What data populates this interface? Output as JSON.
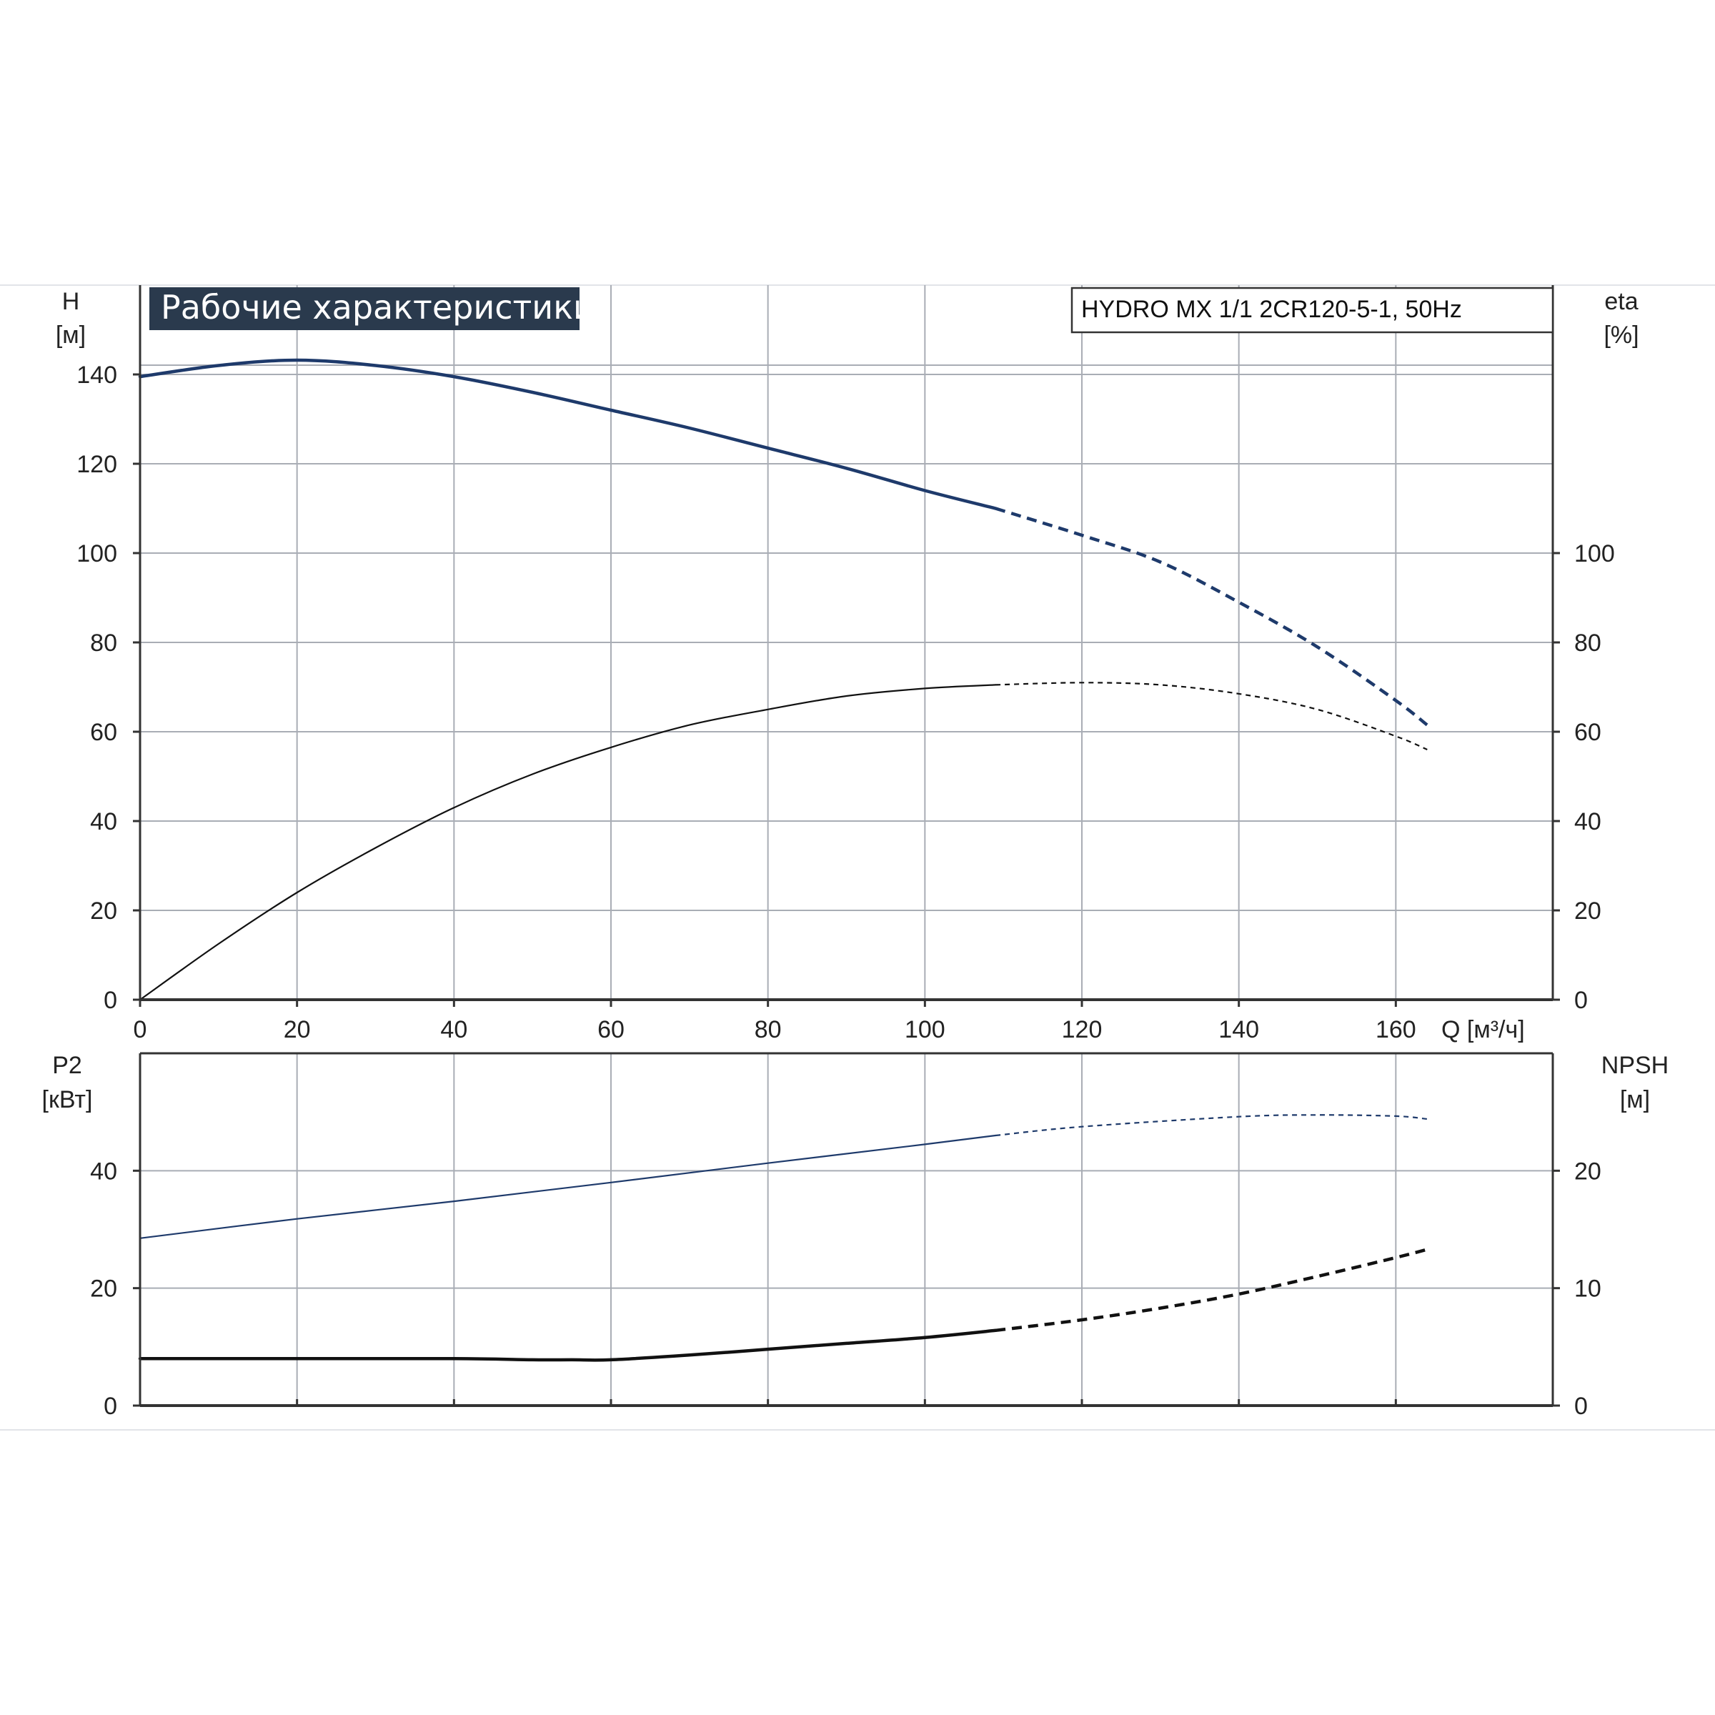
{
  "title": "Рабочие характеристики",
  "model": "HYDRO MX 1/1 2CR120-5-1, 50Hz",
  "colors": {
    "background": "#ffffff",
    "grid": "#a9adb5",
    "axis": "#333333",
    "title_bg": "#2a3a4d",
    "blue_curve": "#1e3a6b",
    "black_curve": "#111111"
  },
  "chart_data": [
    {
      "type": "line",
      "panel": "top",
      "xlabel": "Q [м³/ч]",
      "ylabel_left": [
        "H",
        "[м]"
      ],
      "ylabel_right": [
        "eta",
        "[%]"
      ],
      "xlim": [
        0,
        180
      ],
      "ylim_left": [
        0,
        160
      ],
      "ylim_right": [
        0,
        160
      ],
      "x_ticks": [
        0,
        20,
        40,
        60,
        80,
        100,
        120,
        140,
        160
      ],
      "y_ticks_left": [
        0,
        20,
        40,
        60,
        80,
        100,
        120,
        140
      ],
      "y_ticks_right": [
        0,
        20,
        40,
        60,
        80,
        100
      ],
      "grid": true,
      "series": [
        {
          "key": "head",
          "axis": "left",
          "color": "#1e3a6b",
          "solid_until": 109,
          "stroke": "thick",
          "x": [
            0,
            10,
            20,
            30,
            40,
            50,
            60,
            70,
            80,
            90,
            100,
            109,
            120,
            130,
            140,
            150,
            160,
            164
          ],
          "y": [
            139.5,
            142,
            143.2,
            142,
            139.5,
            136,
            132,
            128,
            123.5,
            119,
            114,
            110,
            104,
            98,
            89,
            79,
            67,
            61.5
          ]
        },
        {
          "key": "efficiency",
          "axis": "right",
          "color": "#111111",
          "solid_until": 109,
          "stroke": "thin",
          "x": [
            0,
            10,
            20,
            30,
            40,
            50,
            60,
            70,
            80,
            90,
            100,
            109,
            120,
            130,
            140,
            150,
            160,
            164
          ],
          "y": [
            0,
            12.5,
            24,
            34,
            43,
            50.5,
            56.5,
            61.5,
            65,
            68,
            69.7,
            70.5,
            71,
            70.5,
            68.5,
            65,
            59,
            56
          ]
        }
      ]
    },
    {
      "type": "line",
      "panel": "bottom",
      "ylabel_left": [
        "P2",
        "[кВт]"
      ],
      "ylabel_right": [
        "NPSH",
        "[м]"
      ],
      "xlim": [
        0,
        180
      ],
      "ylim_left": [
        0,
        60
      ],
      "ylim_right": [
        0,
        30
      ],
      "y_ticks_left": [
        0,
        20,
        40
      ],
      "y_ticks_right": [
        0,
        10,
        20
      ],
      "grid": true,
      "series": [
        {
          "key": "power_p2",
          "axis": "left",
          "color": "#1e3a6b",
          "solid_until": 109,
          "stroke": "thin",
          "x": [
            0,
            20,
            40,
            60,
            80,
            100,
            109,
            120,
            140,
            150,
            160,
            164
          ],
          "y": [
            28.5,
            31.8,
            34.8,
            38,
            41.3,
            44.5,
            46,
            47.5,
            49.2,
            49.5,
            49.3,
            48.8
          ]
        },
        {
          "key": "npsh",
          "axis": "right",
          "color": "#111111",
          "solid_until": 109,
          "stroke": "thick",
          "x": [
            0,
            20,
            40,
            50,
            55,
            60,
            70,
            80,
            90,
            100,
            109,
            120,
            130,
            140,
            150,
            160,
            164
          ],
          "y": [
            4,
            4,
            4,
            3.9,
            3.9,
            3.9,
            4.3,
            4.8,
            5.3,
            5.8,
            6.4,
            7.3,
            8.3,
            9.5,
            11,
            12.6,
            13.3
          ]
        }
      ]
    }
  ]
}
